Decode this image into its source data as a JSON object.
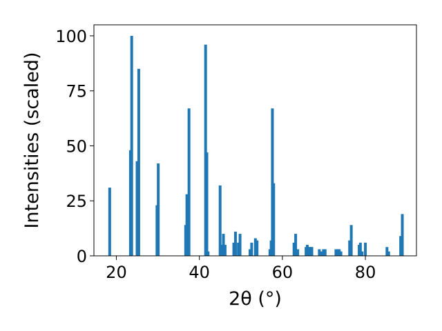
{
  "chart_data": {
    "type": "bar",
    "xlabel": "2θ (°)",
    "ylabel": "Intensities (scaled)",
    "xlim": [
      14.6,
      92.3
    ],
    "ylim": [
      0,
      105
    ],
    "xticks": [
      20,
      40,
      60,
      80
    ],
    "yticks": [
      0,
      25,
      50,
      75,
      100
    ],
    "bar_color": "#1f77b4",
    "grid": false,
    "legend": "none",
    "series": [
      {
        "x": [
          18.4,
          23.4,
          23.7,
          25.0,
          25.4,
          29.8,
          30.1,
          36.7,
          37.0,
          37.5,
          41.5,
          41.8,
          42.1,
          45.0,
          45.3,
          45.8,
          46.2,
          48.3,
          48.7,
          49.4,
          49.8,
          52.2,
          52.6,
          53.5,
          53.9,
          57.0,
          57.3,
          57.6,
          57.9,
          62.8,
          63.2,
          63.7,
          65.7,
          66.0,
          66.4,
          66.8,
          67.1,
          68.9,
          69.3,
          69.9,
          70.3,
          72.9,
          73.3,
          73.7,
          74.1,
          76.2,
          76.6,
          78.5,
          78.8,
          79.2,
          80.0,
          85.2,
          85.6,
          88.5,
          88.9
        ],
        "y": [
          31,
          48,
          100,
          43,
          85,
          23,
          42,
          14,
          28,
          67,
          96,
          47,
          2,
          32,
          5,
          10,
          5,
          6,
          11,
          6,
          10,
          3,
          6,
          8,
          7,
          3,
          7,
          67,
          33,
          6,
          10,
          3,
          4,
          5,
          4,
          4,
          4,
          3,
          2,
          3,
          3,
          3,
          3,
          3,
          2,
          7,
          14,
          5,
          6,
          2,
          6,
          4,
          2,
          9,
          19
        ]
      }
    ]
  }
}
